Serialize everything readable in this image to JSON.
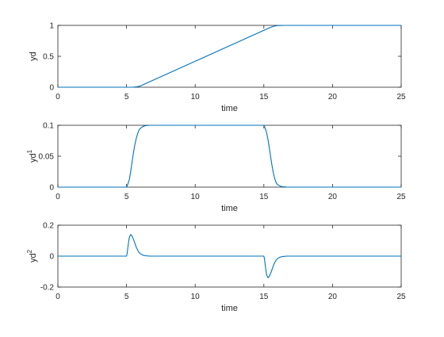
{
  "figure": {
    "background": "#ffffff",
    "line_color": "#0072bd",
    "axes_color": "#262626"
  },
  "chart_data": [
    {
      "type": "line",
      "title": "",
      "xlabel": "time",
      "ylabel": "yd",
      "ylabel_superscript": "",
      "xlim": [
        0,
        25
      ],
      "ylim": [
        0,
        1
      ],
      "xticks": [
        0,
        5,
        10,
        15,
        20,
        25
      ],
      "yticks": [
        0,
        0.5,
        1
      ],
      "xtick_labels": [
        "0",
        "5",
        "10",
        "15",
        "20",
        "25"
      ],
      "ytick_labels": [
        "0",
        "0.5",
        "1"
      ],
      "grid": false,
      "series": [
        {
          "x": [
            0,
            5,
            5.5,
            5.7,
            6.0,
            6.5,
            7,
            8,
            9,
            10,
            11,
            12,
            13,
            14,
            15,
            15.5,
            15.8,
            16.0,
            16.5,
            17,
            20,
            25
          ],
          "y": [
            0,
            0,
            0.001,
            0.005,
            0.02,
            0.07,
            0.12,
            0.22,
            0.32,
            0.42,
            0.52,
            0.62,
            0.72,
            0.82,
            0.92,
            0.97,
            0.99,
            0.998,
            1,
            1,
            1,
            1
          ]
        }
      ]
    },
    {
      "type": "line",
      "title": "",
      "xlabel": "time",
      "ylabel": "yd",
      "ylabel_superscript": "1",
      "xlim": [
        0,
        25
      ],
      "ylim": [
        0,
        0.1
      ],
      "xticks": [
        0,
        5,
        10,
        15,
        20,
        25
      ],
      "yticks": [
        0,
        0.05,
        0.1
      ],
      "xtick_labels": [
        "0",
        "5",
        "10",
        "15",
        "20",
        "25"
      ],
      "ytick_labels": [
        "0",
        "0.05",
        "0.1"
      ],
      "grid": false,
      "series": [
        {
          "x": [
            0,
            5,
            5.1,
            5.2,
            5.3,
            5.4,
            5.5,
            5.6,
            5.7,
            5.8,
            5.9,
            6.0,
            6.2,
            6.4,
            6.7,
            7,
            10,
            15,
            15.1,
            15.2,
            15.3,
            15.4,
            15.5,
            15.6,
            15.7,
            15.8,
            15.9,
            16.0,
            16.2,
            16.4,
            16.7,
            17,
            20,
            25
          ],
          "y": [
            0,
            0,
            0.005,
            0.012,
            0.025,
            0.04,
            0.055,
            0.068,
            0.078,
            0.086,
            0.092,
            0.095,
            0.098,
            0.0995,
            0.1,
            0.1,
            0.1,
            0.1,
            0.095,
            0.088,
            0.077,
            0.063,
            0.048,
            0.034,
            0.022,
            0.013,
            0.007,
            0.004,
            0.0015,
            0.0005,
            0.0001,
            0,
            0,
            0
          ]
        }
      ]
    },
    {
      "type": "line",
      "title": "",
      "xlabel": "time",
      "ylabel": "yd",
      "ylabel_superscript": "2",
      "xlim": [
        0,
        25
      ],
      "ylim": [
        -0.2,
        0.2
      ],
      "xticks": [
        0,
        5,
        10,
        15,
        20,
        25
      ],
      "yticks": [
        -0.2,
        0,
        0.2
      ],
      "xtick_labels": [
        "0",
        "5",
        "10",
        "15",
        "20",
        "25"
      ],
      "ytick_labels": [
        "-0.2",
        "0",
        "0.2"
      ],
      "grid": false,
      "series": [
        {
          "x": [
            0,
            5,
            5.05,
            5.1,
            5.2,
            5.3,
            5.4,
            5.5,
            5.6,
            5.7,
            5.8,
            5.9,
            6.0,
            6.2,
            6.4,
            6.7,
            7,
            10,
            15,
            15.05,
            15.1,
            15.2,
            15.3,
            15.4,
            15.5,
            15.6,
            15.7,
            15.8,
            15.9,
            16.0,
            16.2,
            16.4,
            16.7,
            17,
            20,
            25
          ],
          "y": [
            0,
            0,
            0.02,
            0.06,
            0.12,
            0.14,
            0.13,
            0.11,
            0.085,
            0.06,
            0.04,
            0.025,
            0.015,
            0.006,
            0.002,
            0,
            0,
            0,
            0,
            -0.02,
            -0.06,
            -0.12,
            -0.14,
            -0.13,
            -0.11,
            -0.085,
            -0.06,
            -0.04,
            -0.025,
            -0.015,
            -0.006,
            -0.002,
            0,
            0,
            0,
            0
          ]
        }
      ]
    }
  ]
}
